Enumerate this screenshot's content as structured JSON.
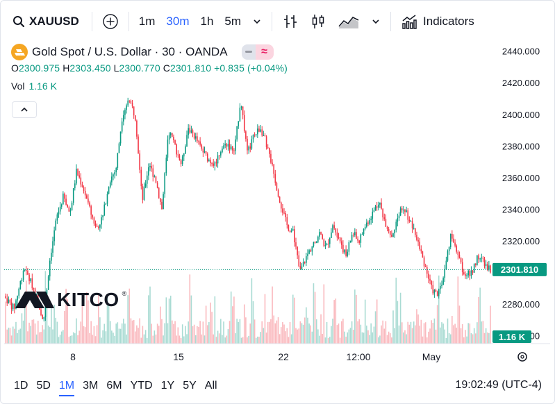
{
  "toolbar": {
    "symbol": "XAUUSD",
    "intervals": [
      "1m",
      "30m",
      "1h",
      "5m"
    ],
    "active_interval": "30m",
    "indicators_label": "Indicators"
  },
  "legend": {
    "title": "Gold Spot / U.S. Dollar · 30 · OANDA",
    "ohlc": {
      "o_key": "O",
      "o": "2300.975",
      "h_key": "H",
      "h": "2303.450",
      "l_key": "L",
      "l": "2300.770",
      "c_key": "C",
      "c": "2301.810",
      "change": "+0.835 (+0.04%)"
    },
    "vol_label": "Vol",
    "vol_value": "1.16 K"
  },
  "watermark": "KITCO",
  "bottom": {
    "ranges": [
      "1D",
      "5D",
      "1M",
      "3M",
      "6M",
      "YTD",
      "1Y",
      "5Y",
      "All"
    ],
    "active_range": "1M",
    "clock": "19:02:49 (UTC-4)"
  },
  "colors": {
    "up": "#089981",
    "down": "#f23645",
    "accent": "#2962ff",
    "price_tag": "#089981"
  },
  "chart_data": {
    "type": "line",
    "title": "Gold Spot / U.S. Dollar · 30 · OANDA",
    "xlabel": "",
    "ylabel": "",
    "y_ticks": [
      2440,
      2420,
      2400,
      2380,
      2360,
      2340,
      2320,
      2280,
      2260
    ],
    "y_tick_labels": [
      "2440.000",
      "2420.000",
      "2400.000",
      "2380.000",
      "2360.000",
      "2340.000",
      "2320.000",
      "2280.000",
      "2260.000"
    ],
    "ylim": [
      2255,
      2446
    ],
    "x_labels": [
      "8",
      "15",
      "22",
      "12:00",
      "May"
    ],
    "last_price": 2301.81,
    "last_price_label": "2301.810",
    "volume_label": "1.16 K",
    "series": [
      {
        "points": [
          [
            0,
            2285
          ],
          [
            1.5,
            2277
          ],
          [
            3,
            2303
          ],
          [
            4.5,
            2290
          ],
          [
            6,
            2270
          ],
          [
            7,
            2310
          ],
          [
            8,
            2335
          ],
          [
            9,
            2348
          ],
          [
            10,
            2337
          ],
          [
            11,
            2364
          ],
          [
            12,
            2354
          ],
          [
            13,
            2340
          ],
          [
            14,
            2328
          ],
          [
            15,
            2335
          ],
          [
            16,
            2358
          ],
          [
            17,
            2365
          ],
          [
            18,
            2400
          ],
          [
            19,
            2410
          ],
          [
            20,
            2398
          ],
          [
            21,
            2345
          ],
          [
            22,
            2368
          ],
          [
            23,
            2360
          ],
          [
            24,
            2340
          ],
          [
            25,
            2390
          ],
          [
            26,
            2380
          ],
          [
            27,
            2368
          ],
          [
            28,
            2392
          ],
          [
            29,
            2386
          ],
          [
            30,
            2378
          ],
          [
            31,
            2372
          ],
          [
            32,
            2368
          ],
          [
            33,
            2378
          ],
          [
            34,
            2382
          ],
          [
            35,
            2375
          ],
          [
            36,
            2410
          ],
          [
            37,
            2375
          ],
          [
            38,
            2386
          ],
          [
            39,
            2392
          ],
          [
            40,
            2380
          ],
          [
            41,
            2363
          ],
          [
            42,
            2345
          ],
          [
            43,
            2330
          ],
          [
            44,
            2325
          ],
          [
            45,
            2300
          ],
          [
            46,
            2310
          ],
          [
            47,
            2318
          ],
          [
            48,
            2325
          ],
          [
            49,
            2315
          ],
          [
            50,
            2330
          ],
          [
            51,
            2322
          ],
          [
            52,
            2310
          ],
          [
            53,
            2325
          ],
          [
            54,
            2320
          ],
          [
            55,
            2330
          ],
          [
            56,
            2337
          ],
          [
            57,
            2345
          ],
          [
            58,
            2332
          ],
          [
            59,
            2323
          ],
          [
            60,
            2338
          ],
          [
            61,
            2340
          ],
          [
            62,
            2330
          ],
          [
            63,
            2318
          ],
          [
            64,
            2305
          ],
          [
            65,
            2290
          ],
          [
            66,
            2285
          ],
          [
            67,
            2300
          ],
          [
            68,
            2325
          ],
          [
            69,
            2310
          ],
          [
            70,
            2300
          ],
          [
            71,
            2298
          ],
          [
            72,
            2310
          ],
          [
            73,
            2307
          ],
          [
            74,
            2302
          ]
        ]
      }
    ]
  }
}
